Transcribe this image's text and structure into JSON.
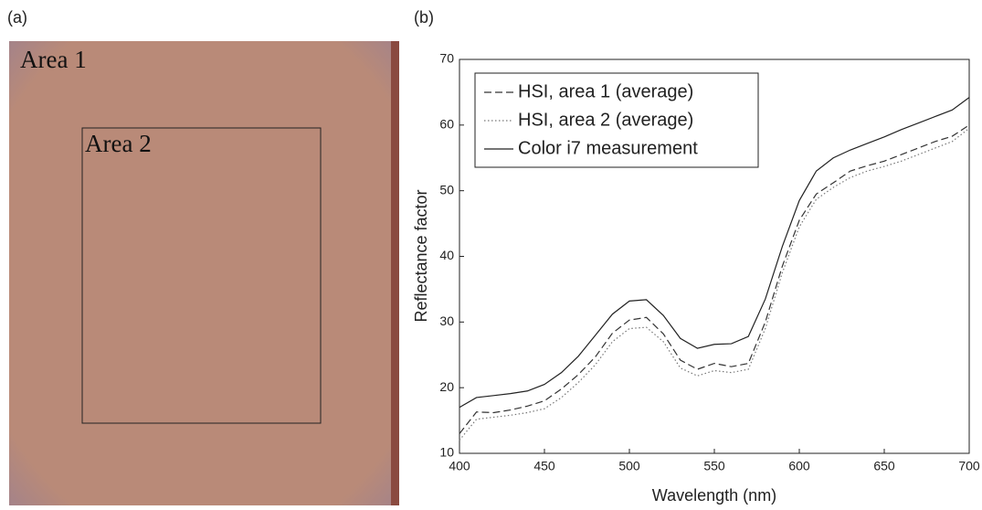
{
  "image_panel": {
    "label": "(a)",
    "annotations": [
      "Area 1",
      "Area 2"
    ]
  },
  "chart_data": {
    "type": "line",
    "panel_label": "(b)",
    "xlabel": "Wavelength (nm)",
    "ylabel": "Reflectance factor",
    "x": [
      400,
      410,
      420,
      430,
      440,
      450,
      460,
      470,
      480,
      490,
      500,
      510,
      520,
      530,
      540,
      550,
      560,
      570,
      580,
      590,
      600,
      610,
      620,
      630,
      640,
      650,
      660,
      670,
      680,
      690,
      700
    ],
    "series": [
      {
        "name": "HSI, area 1 (average)",
        "color": "#333333",
        "dash": "dashed",
        "values": [
          13,
          16.3,
          16.2,
          16.6,
          17.2,
          18,
          19.8,
          22,
          24.7,
          28.3,
          30.3,
          30.7,
          28.2,
          24.2,
          22.8,
          23.7,
          23.2,
          23.7,
          30,
          38.5,
          45.5,
          49.5,
          51.2,
          53,
          53.8,
          54.5,
          55.5,
          56.5,
          57.5,
          58.3,
          60
        ]
      },
      {
        "name": "HSI, area 2 (average)",
        "color": "#777777",
        "dash": "dotted",
        "values": [
          12,
          15.2,
          15.5,
          15.8,
          16.2,
          16.8,
          18.5,
          20.8,
          23.5,
          27,
          29,
          29.2,
          27,
          23,
          21.8,
          22.6,
          22.3,
          22.8,
          29,
          37.5,
          44.5,
          48.7,
          50.5,
          52,
          53,
          53.7,
          54.5,
          55.5,
          56.5,
          57.5,
          59.5
        ]
      },
      {
        "name": "Color i7 measurement",
        "color": "#222222",
        "dash": "solid",
        "values": [
          17,
          18.5,
          18.8,
          19.1,
          19.5,
          20.5,
          22.3,
          24.8,
          28,
          31.2,
          33.2,
          33.4,
          31,
          27.5,
          26,
          26.6,
          26.7,
          27.8,
          33.5,
          41.5,
          48.5,
          53,
          55,
          56.2,
          57.2,
          58.2,
          59.3,
          60.3,
          61.3,
          62.3,
          64.2
        ]
      }
    ],
    "xlim": [
      400,
      700
    ],
    "xticks": [
      400,
      450,
      500,
      550,
      600,
      650,
      700
    ],
    "ylim": [
      10,
      70
    ],
    "yticks": [
      10,
      20,
      30,
      40,
      50,
      60,
      70
    ],
    "grid": false,
    "legend": "upper left"
  }
}
